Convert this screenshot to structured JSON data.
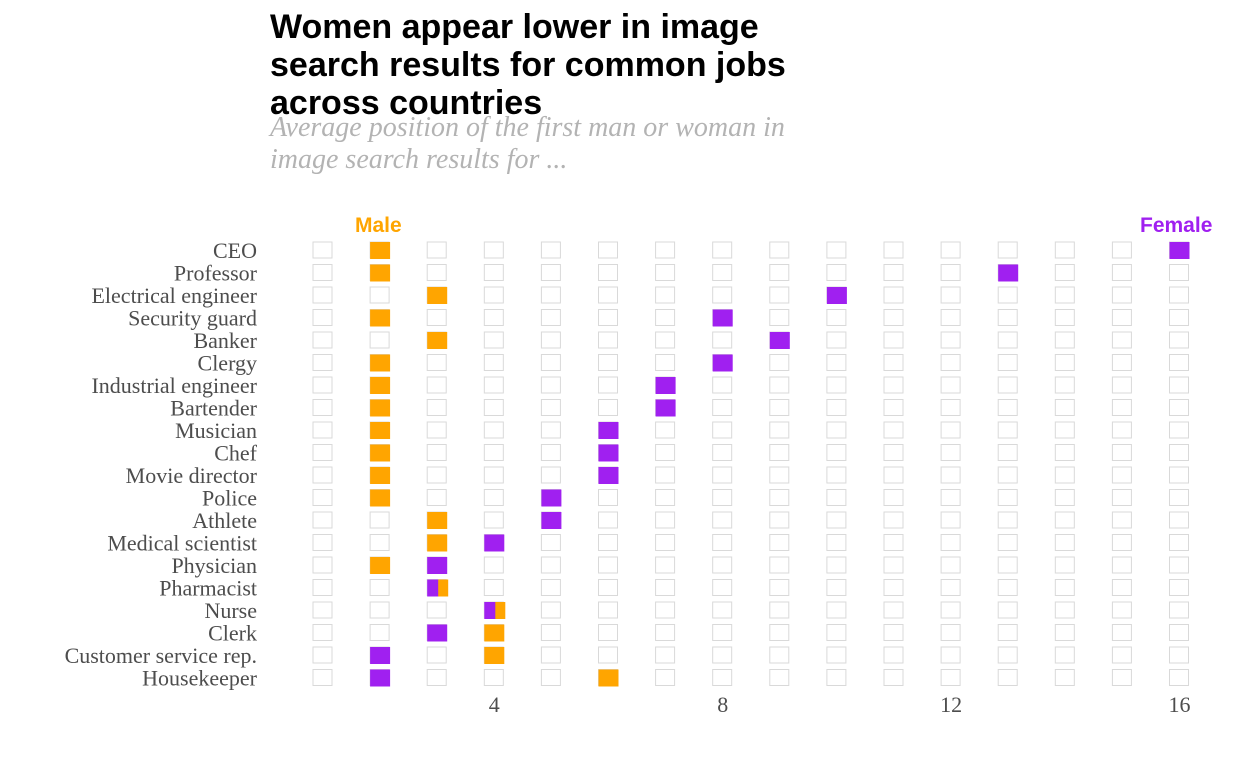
{
  "chart_data": {
    "type": "dot-grid",
    "title": "Women appear lower in image search results for common jobs across countries",
    "subtitle": "Average position of the first man or woman in image search results for ...",
    "legend": {
      "male_label": "Male",
      "female_label": "Female"
    },
    "colors": {
      "male": "#FFA500",
      "female": "#A020F0",
      "empty_border": "#d9d9d9"
    },
    "xlim": [
      1,
      16
    ],
    "x_ticks": [
      4,
      8,
      12,
      16
    ],
    "categories": [
      "CEO",
      "Professor",
      "Electrical engineer",
      "Security guard",
      "Banker",
      "Clergy",
      "Industrial engineer",
      "Bartender",
      "Musician",
      "Chef",
      "Movie director",
      "Police",
      "Athlete",
      "Medical scientist",
      "Physician",
      "Pharmacist",
      "Nurse",
      "Clerk",
      "Customer service rep.",
      "Housekeeper"
    ],
    "series": [
      {
        "name": "Male",
        "values": [
          2,
          2,
          3,
          2,
          3,
          2,
          2,
          2,
          2,
          2,
          2,
          2,
          3,
          3,
          2,
          3,
          4,
          4,
          4,
          6
        ]
      },
      {
        "name": "Female",
        "values": [
          16,
          13,
          10,
          8,
          9,
          8,
          7,
          7,
          6,
          6,
          6,
          5,
          5,
          4,
          3,
          3,
          4,
          3,
          2,
          2
        ]
      }
    ]
  }
}
